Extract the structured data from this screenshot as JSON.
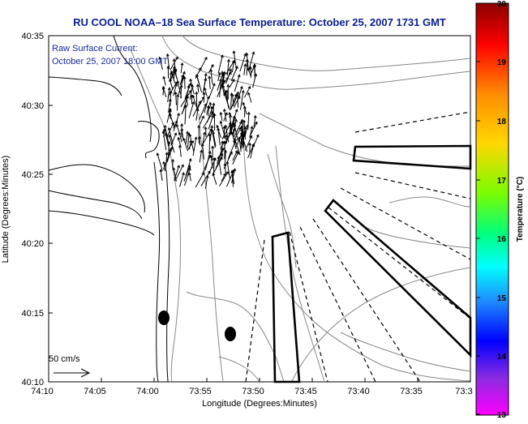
{
  "title": "RU COOL  NOAA–18  Sea Surface Temperature:  October 25, 2007 1731 GMT",
  "annotation": {
    "line1": "Raw Surface Current:",
    "line2": "October 25, 2007 18:00 GMT"
  },
  "scale": {
    "label": "50 cm/s"
  },
  "colorbar": {
    "title": "Temperature (°C)",
    "ticks": [
      "20",
      "19",
      "18",
      "17",
      "16",
      "15",
      "14",
      "13"
    ],
    "colors": [
      "#8b0000",
      "#ff0000",
      "#ff8c00",
      "#ffd700",
      "#7cfc00",
      "#00ff7f",
      "#00ffff",
      "#1e90ff",
      "#0000ff",
      "#8a2be2",
      "#ff00ff"
    ]
  },
  "chart_data": {
    "type": "map",
    "xlabel": "Longitude (Degrees:Minutes)",
    "ylabel": "Latitude (Degrees:Minutes)",
    "x_ticks": [
      "74:10",
      "74:05",
      "74:00",
      "73:55",
      "73:50",
      "73:45",
      "73:40",
      "73:35",
      "73:3"
    ],
    "y_ticks": [
      "40:35",
      "40:30",
      "40:25",
      "40:20",
      "40:15",
      "40:10"
    ],
    "grid": false
  }
}
